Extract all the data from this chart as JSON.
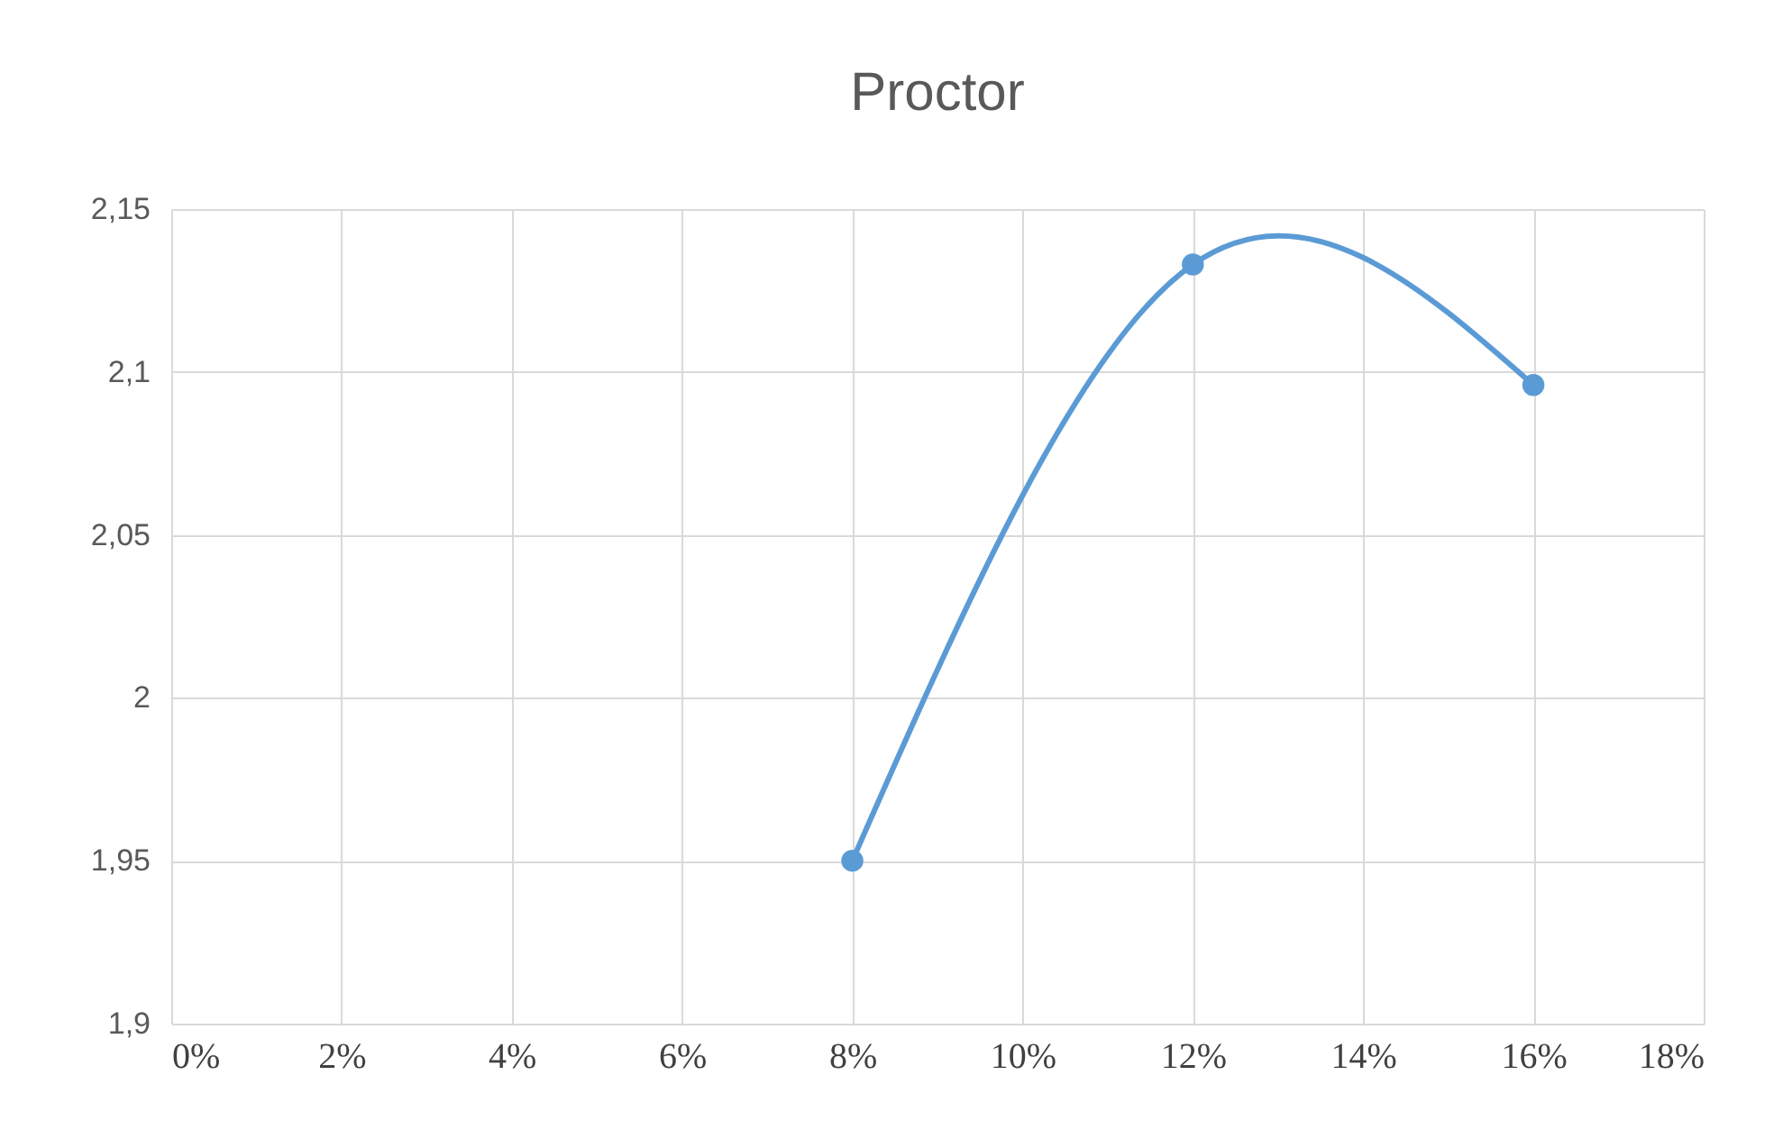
{
  "chart_data": {
    "type": "line",
    "title": "Proctor",
    "x": [
      8,
      12,
      16
    ],
    "series": [
      {
        "color": "#5b9bd5",
        "values": [
          1.95,
          2.133,
          2.096
        ]
      }
    ],
    "xlim": [
      0,
      18
    ],
    "xticks": [
      {
        "value": 0,
        "label": "0%"
      },
      {
        "value": 2,
        "label": "2%"
      },
      {
        "value": 4,
        "label": "4%"
      },
      {
        "value": 6,
        "label": "6%"
      },
      {
        "value": 8,
        "label": "8%"
      },
      {
        "value": 10,
        "label": "10%"
      },
      {
        "value": 12,
        "label": "12%"
      },
      {
        "value": 14,
        "label": "14%"
      },
      {
        "value": 16,
        "label": "16%"
      },
      {
        "value": 18,
        "label": "18%"
      }
    ],
    "ylim": [
      1.9,
      2.15
    ],
    "yticks": [
      {
        "value": 1.9,
        "label": "1,9"
      },
      {
        "value": 1.95,
        "label": "1,95"
      },
      2,
      {
        "value": 2.05,
        "label": "2,05"
      },
      {
        "value": 2.1,
        "label": "2,1"
      },
      {
        "value": 2.15,
        "label": "2,15"
      }
    ],
    "grid": true,
    "marker": "circle",
    "line_style": "solid"
  }
}
